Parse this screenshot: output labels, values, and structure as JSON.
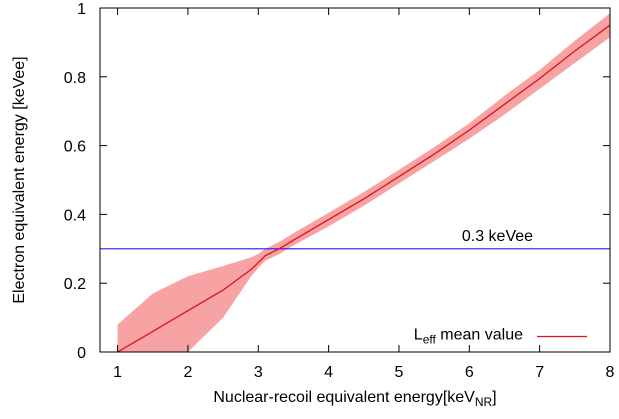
{
  "chart_data": {
    "type": "line",
    "xlabel": "Nuclear-recoil equivalent energy[keV",
    "xlabel_sub": "NR",
    "xlabel_suffix": "]",
    "ylabel": "Electron equivalent energy [keVee]",
    "xlim": [
      0.75,
      8
    ],
    "ylim": [
      0,
      1
    ],
    "xticks": [
      1,
      2,
      3,
      4,
      5,
      6,
      7,
      8
    ],
    "yticks": [
      0,
      0.2,
      0.4,
      0.6,
      0.8,
      1
    ],
    "ytick_labels": [
      "0",
      "0.2",
      "0.4",
      "0.6",
      "0.8",
      "1"
    ],
    "grid": false,
    "legend_position": "bottom-right",
    "series": [
      {
        "name": "L",
        "name_sub": "eff",
        "name_suffix": " mean value",
        "color": "#e0101a",
        "band_color": "#f7a3a3",
        "x": [
          1.0,
          1.5,
          2.0,
          2.5,
          2.9,
          3.0,
          3.1,
          3.2,
          3.3,
          3.5,
          4.0,
          4.5,
          5.0,
          5.5,
          6.0,
          6.5,
          7.0,
          7.5,
          8.0
        ],
        "y": [
          0.0,
          0.06,
          0.12,
          0.18,
          0.24,
          0.26,
          0.28,
          0.29,
          0.3,
          0.325,
          0.385,
          0.445,
          0.51,
          0.575,
          0.645,
          0.72,
          0.795,
          0.875,
          0.95
        ],
        "y_low": [
          -0.07,
          -0.03,
          0.0,
          0.1,
          0.22,
          0.245,
          0.265,
          0.275,
          0.285,
          0.31,
          0.365,
          0.425,
          0.49,
          0.555,
          0.62,
          0.69,
          0.765,
          0.84,
          0.915
        ],
        "y_high": [
          0.08,
          0.17,
          0.22,
          0.25,
          0.275,
          0.285,
          0.3,
          0.31,
          0.32,
          0.345,
          0.405,
          0.465,
          0.53,
          0.595,
          0.665,
          0.745,
          0.82,
          0.905,
          0.985
        ]
      }
    ],
    "reference_lines": [
      {
        "y": 0.3,
        "label": "0.3 keVee",
        "color": "#1a1aff"
      }
    ]
  }
}
